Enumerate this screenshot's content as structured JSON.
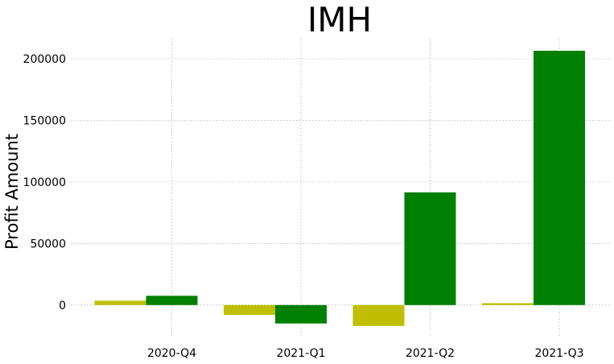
{
  "chart_data": {
    "type": "bar",
    "title": "IMH",
    "xlabel": "",
    "ylabel": "Profit Amount",
    "categories": [
      "2020-Q4",
      "2021-Q1",
      "2021-Q2",
      "2021-Q3"
    ],
    "series": [
      {
        "color": "#bfbf00",
        "values": [
          3500,
          -8000,
          -17000,
          1500
        ]
      },
      {
        "color": "#008000",
        "values": [
          7500,
          -15000,
          91500,
          206500
        ]
      }
    ],
    "ylim": [
      -25000,
      217000
    ],
    "yticks": [
      0,
      50000,
      100000,
      150000,
      200000
    ],
    "grid": true,
    "legend": "none"
  }
}
